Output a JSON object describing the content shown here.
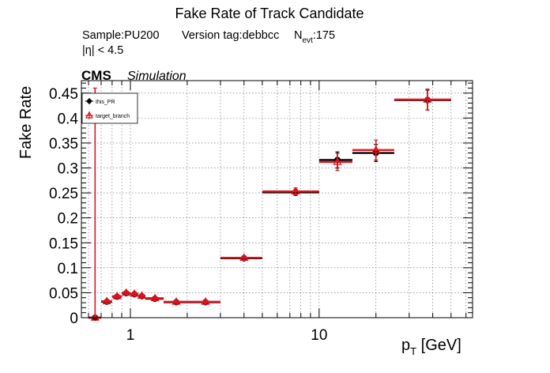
{
  "header": {
    "title": "Fake Rate of Track Candidate",
    "sample_line": {
      "sample": "Sample:PU200",
      "version": "Version tag:debbcc",
      "nevt_label": "N",
      "nevt_sub": "evt",
      "nevt_value": ":175"
    },
    "eta_cut": "|η| < 4.5",
    "cms_label": "CMS",
    "simulation_label": "Simulation"
  },
  "chart_data": {
    "type": "scatter",
    "title": "Fake Rate of Track Candidate",
    "xlabel_main": "p",
    "xlabel_sub": "T",
    "xlabel_unit": " [GeV]",
    "ylabel": "Fake Rate",
    "x_scale": "log",
    "xlim": [
      0.55,
      65
    ],
    "ylim": [
      0,
      0.475
    ],
    "grid": true,
    "legend_placement": "top-left",
    "x_ticks": [
      {
        "value": 1,
        "label": "1"
      },
      {
        "value": 10,
        "label": "10"
      }
    ],
    "y_ticks": [
      {
        "value": 0,
        "label": "0"
      },
      {
        "value": 0.05,
        "label": "0.05"
      },
      {
        "value": 0.1,
        "label": "0.1"
      },
      {
        "value": 0.15,
        "label": "0.15"
      },
      {
        "value": 0.2,
        "label": "0.2"
      },
      {
        "value": 0.25,
        "label": "0.25"
      },
      {
        "value": 0.3,
        "label": "0.3"
      },
      {
        "value": 0.35,
        "label": "0.35"
      },
      {
        "value": 0.4,
        "label": "0.4"
      },
      {
        "value": 0.45,
        "label": "0.45"
      }
    ],
    "series": [
      {
        "name": "this_PR",
        "color": "#000000",
        "marker": "filled-circle",
        "points": [
          {
            "x": 0.65,
            "xlo": 0.6,
            "xhi": 0.7,
            "y": 0.0,
            "yerr": 0.003
          },
          {
            "x": 0.75,
            "xlo": 0.7,
            "xhi": 0.8,
            "y": 0.032,
            "yerr": 0.003
          },
          {
            "x": 0.85,
            "xlo": 0.8,
            "xhi": 0.9,
            "y": 0.042,
            "yerr": 0.003
          },
          {
            "x": 0.95,
            "xlo": 0.9,
            "xhi": 1.0,
            "y": 0.049,
            "yerr": 0.003
          },
          {
            "x": 1.05,
            "xlo": 1.0,
            "xhi": 1.1,
            "y": 0.047,
            "yerr": 0.003
          },
          {
            "x": 1.15,
            "xlo": 1.1,
            "xhi": 1.2,
            "y": 0.043,
            "yerr": 0.003
          },
          {
            "x": 1.35,
            "xlo": 1.2,
            "xhi": 1.5,
            "y": 0.038,
            "yerr": 0.003
          },
          {
            "x": 1.75,
            "xlo": 1.5,
            "xhi": 2.0,
            "y": 0.031,
            "yerr": 0.003
          },
          {
            "x": 2.5,
            "xlo": 2.0,
            "xhi": 3.0,
            "y": 0.031,
            "yerr": 0.003
          },
          {
            "x": 4.0,
            "xlo": 3.0,
            "xhi": 5.0,
            "y": 0.119,
            "yerr": 0.004
          },
          {
            "x": 7.5,
            "xlo": 5.0,
            "xhi": 10.0,
            "y": 0.251,
            "yerr": 0.006
          },
          {
            "x": 12.5,
            "xlo": 10.0,
            "xhi": 15.0,
            "y": 0.316,
            "yerr": 0.016
          },
          {
            "x": 20.0,
            "xlo": 15.0,
            "xhi": 25.0,
            "y": 0.33,
            "yerr": 0.017
          },
          {
            "x": 37.5,
            "xlo": 25.0,
            "xhi": 50.0,
            "y": 0.436,
            "yerr": 0.02
          }
        ]
      },
      {
        "name": "target_branch",
        "color": "#e0141e",
        "marker": "open-triangle",
        "points": [
          {
            "x": 0.65,
            "xlo": 0.6,
            "xhi": 0.7,
            "y": 0.0,
            "yerr": 0.46
          },
          {
            "x": 0.75,
            "xlo": 0.7,
            "xhi": 0.8,
            "y": 0.033,
            "yerr": 0.003
          },
          {
            "x": 0.85,
            "xlo": 0.8,
            "xhi": 0.9,
            "y": 0.043,
            "yerr": 0.003
          },
          {
            "x": 0.95,
            "xlo": 0.9,
            "xhi": 1.0,
            "y": 0.05,
            "yerr": 0.003
          },
          {
            "x": 1.05,
            "xlo": 1.0,
            "xhi": 1.1,
            "y": 0.048,
            "yerr": 0.003
          },
          {
            "x": 1.15,
            "xlo": 1.1,
            "xhi": 1.2,
            "y": 0.044,
            "yerr": 0.003
          },
          {
            "x": 1.35,
            "xlo": 1.2,
            "xhi": 1.5,
            "y": 0.039,
            "yerr": 0.003
          },
          {
            "x": 1.75,
            "xlo": 1.5,
            "xhi": 2.0,
            "y": 0.032,
            "yerr": 0.003
          },
          {
            "x": 2.5,
            "xlo": 2.0,
            "xhi": 3.0,
            "y": 0.032,
            "yerr": 0.003
          },
          {
            "x": 4.0,
            "xlo": 3.0,
            "xhi": 5.0,
            "y": 0.12,
            "yerr": 0.004
          },
          {
            "x": 7.5,
            "xlo": 5.0,
            "xhi": 10.0,
            "y": 0.253,
            "yerr": 0.007
          },
          {
            "x": 12.5,
            "xlo": 10.0,
            "xhi": 15.0,
            "y": 0.312,
            "yerr": 0.017
          },
          {
            "x": 20.0,
            "xlo": 15.0,
            "xhi": 25.0,
            "y": 0.336,
            "yerr": 0.02
          },
          {
            "x": 37.5,
            "xlo": 25.0,
            "xhi": 50.0,
            "y": 0.437,
            "yerr": 0.021
          }
        ]
      }
    ]
  }
}
